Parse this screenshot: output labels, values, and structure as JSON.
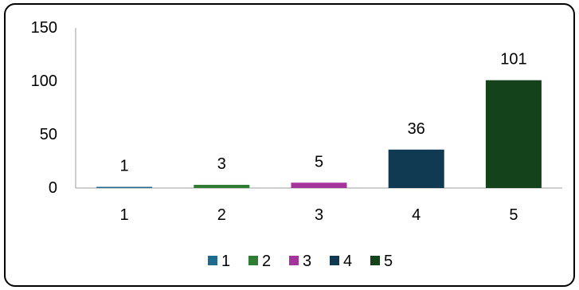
{
  "chart_data": {
    "type": "bar",
    "categories": [
      "1",
      "2",
      "3",
      "4",
      "5"
    ],
    "values": [
      1,
      3,
      5,
      36,
      101
    ],
    "colors": [
      "#1f6b8f",
      "#2e7d32",
      "#a4339b",
      "#0f3a52",
      "#14421b"
    ],
    "ylim": [
      0,
      150
    ],
    "yticks": [
      0,
      50,
      100,
      150
    ],
    "grid": false,
    "legend": {
      "placement": "bottom",
      "labels": [
        "1",
        "2",
        "3",
        "4",
        "5"
      ]
    }
  }
}
